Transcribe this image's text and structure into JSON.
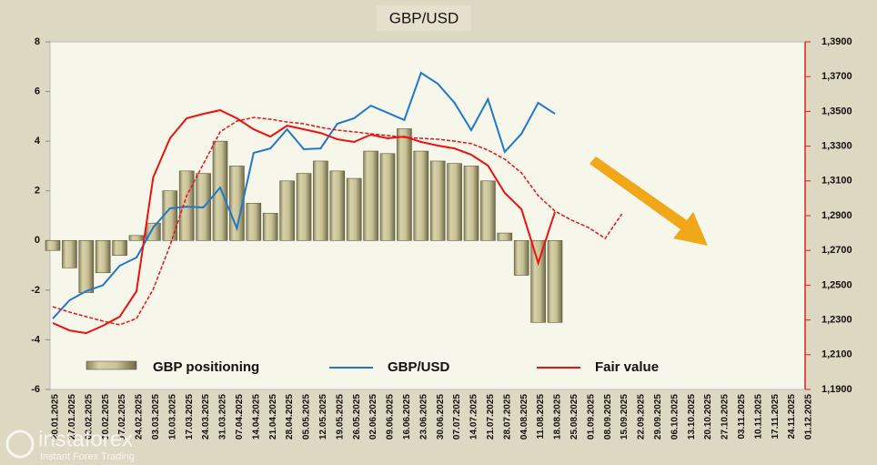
{
  "chart_data": {
    "type": "bar_line",
    "title": "GBP/USD",
    "watermark": {
      "brand": "instaforex",
      "tagline": "Instant Forex Trading"
    },
    "categories": [
      "20.01.2025",
      "27.01.2025",
      "03.02.2025",
      "10.02.2025",
      "17.02.2025",
      "24.02.2025",
      "03.03.2025",
      "10.03.2025",
      "17.03.2025",
      "24.03.2025",
      "31.03.2025",
      "07.04.2025",
      "14.04.2025",
      "21.04.2025",
      "28.04.2025",
      "05.05.2025",
      "12.05.2025",
      "19.05.2025",
      "26.05.2025",
      "02.06.2025",
      "09.06.2025",
      "16.06.2025",
      "23.06.2025",
      "30.06.2025",
      "07.07.2025",
      "14.07.2025",
      "21.07.2025",
      "28.07.2025",
      "04.08.2025",
      "11.08.2025",
      "18.08.2025",
      "25.08.2025",
      "01.09.2025",
      "08.09.2025",
      "15.09.2025",
      "22.09.2025",
      "29.09.2025",
      "06.10.2025",
      "13.10.2025",
      "20.10.2025",
      "27.10.2025",
      "03.11.2025",
      "10.11.2025",
      "17.11.2025",
      "24.11.2025",
      "01.12.2025"
    ],
    "ylim": [
      -6,
      8
    ],
    "yticks": [
      -6,
      -4,
      -2,
      0,
      2,
      4,
      6,
      8
    ],
    "y2lim": [
      1.19,
      1.39
    ],
    "y2ticks": [
      {
        "value": 1.19,
        "label": "1,1900"
      },
      {
        "value": 1.21,
        "label": "1,2100"
      },
      {
        "value": 1.23,
        "label": "1,2300"
      },
      {
        "value": 1.25,
        "label": "1,2500"
      },
      {
        "value": 1.27,
        "label": "1,2700"
      },
      {
        "value": 1.29,
        "label": "1,2900"
      },
      {
        "value": 1.31,
        "label": "1,3100"
      },
      {
        "value": 1.33,
        "label": "1,3300"
      },
      {
        "value": 1.35,
        "label": "1,3500"
      },
      {
        "value": 1.37,
        "label": "1,3700"
      },
      {
        "value": 1.39,
        "label": "1,3900"
      }
    ],
    "series": [
      {
        "name": "GBP positioning",
        "kind": "bar",
        "color": "#c9c196",
        "values": [
          -0.4,
          -1.1,
          -2.1,
          -1.3,
          -0.6,
          0.2,
          0.7,
          2.0,
          2.8,
          2.7,
          4.0,
          3.0,
          1.5,
          1.1,
          2.4,
          2.7,
          3.2,
          2.8,
          2.5,
          3.6,
          3.5,
          4.5,
          3.6,
          3.2,
          3.1,
          3.0,
          2.4,
          0.3,
          -1.4,
          -3.3,
          -3.3,
          null,
          null,
          null,
          null,
          null,
          null,
          null,
          null,
          null,
          null,
          null,
          null,
          null,
          null,
          null
        ]
      },
      {
        "name": "GBP/USD",
        "kind": "line",
        "axis": "y2",
        "color": "#1f78c8",
        "values": [
          1.2308,
          1.2413,
          1.2466,
          1.25,
          1.2612,
          1.2659,
          1.2832,
          1.2942,
          1.2952,
          1.2947,
          1.3062,
          1.2827,
          1.3261,
          1.3287,
          1.3397,
          1.3282,
          1.3287,
          1.3429,
          1.346,
          1.3533,
          1.3492,
          1.345,
          1.3722,
          1.3659,
          1.3549,
          1.3392,
          1.357,
          1.3267,
          1.3371,
          1.3549,
          1.3486,
          null,
          null,
          null,
          null,
          null,
          null,
          null,
          null,
          null,
          null,
          null,
          null,
          null,
          null,
          null
        ]
      },
      {
        "name": "Fair value",
        "kind": "line",
        "axis": "y2",
        "color": "#ee1111",
        "values": [
          1.2282,
          1.224,
          1.2224,
          1.2267,
          1.2319,
          1.2465,
          1.312,
          1.3345,
          1.346,
          1.3486,
          1.3507,
          1.346,
          1.3397,
          1.3355,
          1.3418,
          1.3397,
          1.3376,
          1.334,
          1.3324,
          1.3366,
          1.3345,
          1.3355,
          1.3324,
          1.3303,
          1.3287,
          1.3251,
          1.3188,
          1.3031,
          1.2937,
          1.2628,
          1.2921,
          null,
          null,
          null,
          null,
          null,
          null,
          null,
          null,
          null,
          null,
          null,
          null,
          null,
          null,
          null
        ]
      },
      {
        "kind": "line",
        "axis": "y2",
        "dashed": true,
        "color": "#ee1111",
        "values": [
          1.2376,
          1.2345,
          1.2319,
          1.2293,
          1.2272,
          1.2308,
          1.2476,
          1.2727,
          1.3015,
          1.3198,
          1.3382,
          1.3444,
          1.3465,
          1.3455,
          1.3439,
          1.3429,
          1.3408,
          1.3392,
          1.3382,
          1.3371,
          1.3361,
          1.335,
          1.3345,
          1.334,
          1.3329,
          1.3314,
          1.3277,
          1.3225,
          1.3146,
          1.3015,
          1.2926,
          1.2874,
          1.2832,
          1.2769,
          1.291,
          null,
          null,
          null,
          null,
          null,
          null,
          null,
          null,
          null,
          null,
          null
        ]
      }
    ]
  }
}
